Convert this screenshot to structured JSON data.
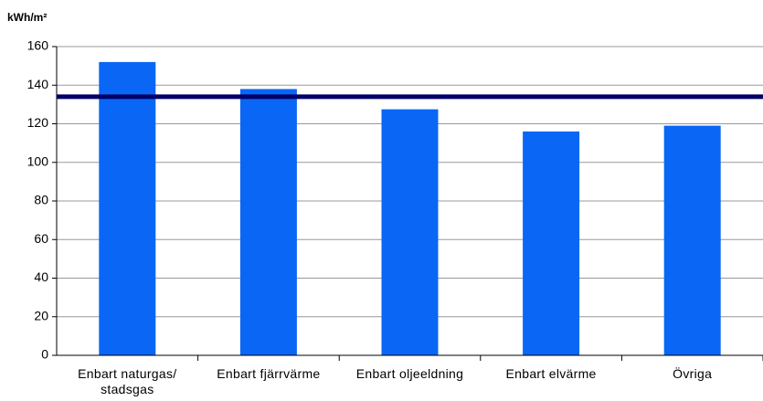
{
  "chart_data": {
    "type": "bar",
    "y_label": "kWh/m²",
    "categories": [
      "Enbart naturgas/ stadsgas",
      "Enbart fjärrvärme",
      "Enbart oljeeldning",
      "Enbart elvärme",
      "Övriga"
    ],
    "values": [
      152,
      138,
      127.5,
      116,
      119
    ],
    "color": "#0a66f5",
    "reference_line": {
      "value": 134,
      "color": "#000066"
    },
    "ylim": [
      0,
      160
    ],
    "yticks": [
      0,
      20,
      40,
      60,
      80,
      100,
      120,
      140,
      160
    ],
    "grid": true
  }
}
